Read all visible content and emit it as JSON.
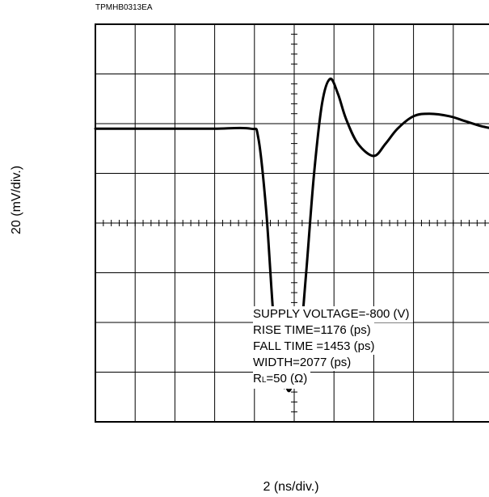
{
  "figure_code": "TPMHB0313EA",
  "chart_data": {
    "type": "line",
    "title": "",
    "xlabel": "2 (ns/div.)",
    "ylabel": "20 (mV/div.)",
    "grid": true,
    "x_divisions": 10,
    "y_divisions": 8,
    "xlim": [
      0,
      10
    ],
    "ylim": [
      -4,
      4
    ],
    "series": [
      {
        "x": [
          0,
          1,
          2,
          3,
          3.9,
          4.1,
          4.3,
          4.5,
          4.7,
          4.8,
          4.9,
          5.1,
          5.3,
          5.5,
          5.7,
          5.9,
          6.1,
          6.3,
          6.6,
          7.0,
          7.3,
          7.6,
          8.0,
          8.4,
          8.9,
          9.3,
          9.7,
          10
        ],
        "y": [
          1.9,
          1.9,
          1.9,
          1.9,
          1.9,
          1.7,
          0.2,
          -2.1,
          -3.2,
          -3.3,
          -3.35,
          -2.8,
          -1.0,
          1.0,
          2.4,
          2.9,
          2.6,
          2.1,
          1.6,
          1.35,
          1.6,
          1.9,
          2.15,
          2.2,
          2.15,
          2.05,
          1.95,
          1.9
        ]
      }
    ],
    "annotations": {
      "supply_voltage": "SUPPLY VOLTAGE=-800 (V)",
      "rise_time": "RISE TIME=1176 (ps)",
      "fall_time": "FALL TIME =1453 (ps)",
      "width": "WIDTH=2077 (ps)",
      "rl_prefix": "R",
      "rl_sub": "L",
      "rl_value": "=50 (Ω)"
    }
  }
}
